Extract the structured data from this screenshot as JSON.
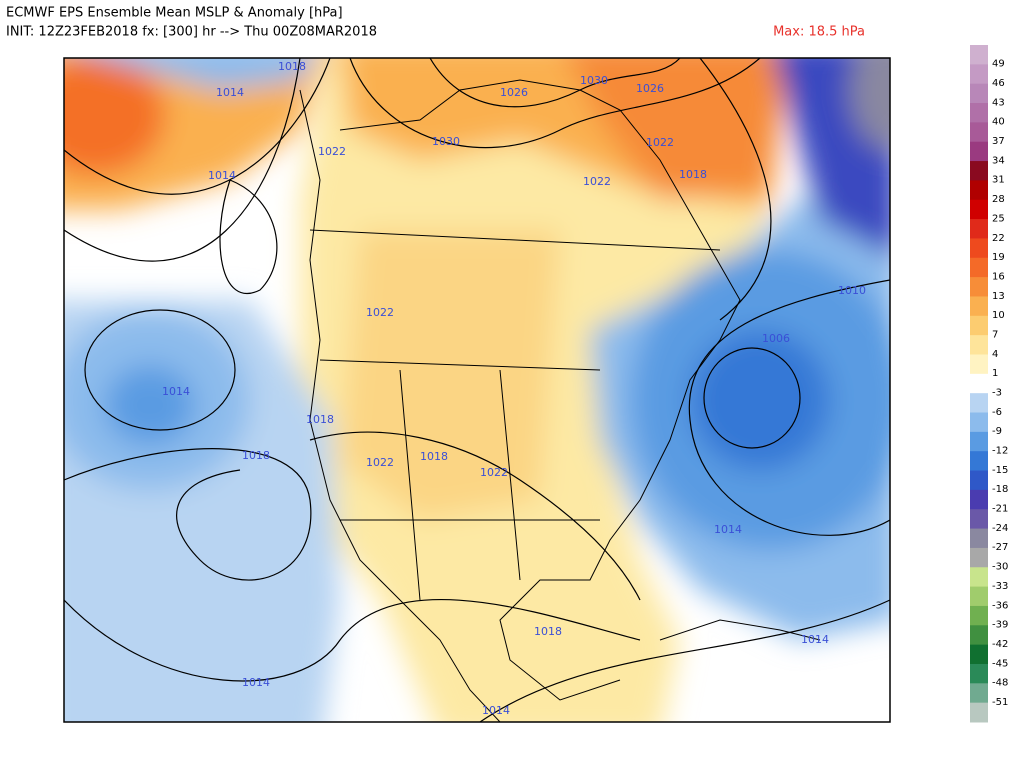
{
  "header": {
    "title": "ECMWF EPS Ensemble Mean MSLP & Anomaly [hPa]",
    "subtitle": "INIT: 12Z23FEB2018 fx: [300] hr --> Thu 00Z08MAR2018",
    "max_label": "Max: 18.5 hPa"
  },
  "contour_labels": [
    "1018",
    "1014",
    "1022",
    "1014",
    "1030",
    "1026",
    "1030",
    "1026",
    "1022",
    "1018",
    "1022",
    "1022",
    "1006",
    "1010",
    "1014",
    "1018",
    "1018",
    "1022",
    "1018",
    "1022",
    "1014",
    "1018",
    "1014",
    "1014",
    "1014"
  ],
  "colorbar": {
    "labels": [
      49,
      46,
      43,
      40,
      37,
      34,
      31,
      28,
      25,
      22,
      19,
      16,
      13,
      10,
      7,
      4,
      1,
      -3,
      -6,
      -9,
      -12,
      -15,
      -18,
      -21,
      -24,
      -27,
      -30,
      -33,
      -36,
      -39,
      -42,
      -45,
      -48,
      -51
    ],
    "colors": [
      "#cfb0cf",
      "#c49ac4",
      "#b887b8",
      "#b070a8",
      "#a85a98",
      "#9a3a80",
      "#8a0a20",
      "#b00000",
      "#d00000",
      "#e02a1a",
      "#ee4a1e",
      "#f46a28",
      "#f78d38",
      "#fab050",
      "#fccc70",
      "#fee49a",
      "#fff3c2",
      "#ffffff",
      "#b8d4f2",
      "#8cbbec",
      "#5a9be2",
      "#3478d6",
      "#2f58c8",
      "#4a3cb0",
      "#6a58a8",
      "#8a88a0",
      "#a8a8a8",
      "#c8e48c",
      "#a0cc6c",
      "#70b050",
      "#409040",
      "#107030",
      "#2a8a58",
      "#70aa90",
      "#b8c8c0"
    ]
  }
}
